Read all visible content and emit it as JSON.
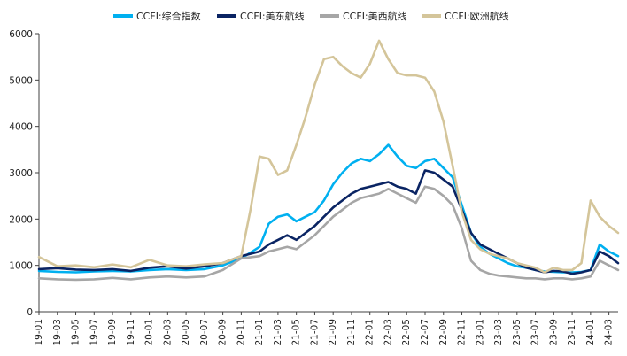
{
  "chart_data": {
    "type": "line",
    "title": "",
    "xlabel": "",
    "ylabel": "",
    "ylim": [
      0,
      6000
    ],
    "y_ticks": [
      0,
      1000,
      2000,
      3000,
      4000,
      5000,
      6000
    ],
    "x_tick_labels": [
      "19-01",
      "19-03",
      "19-05",
      "19-07",
      "19-09",
      "19-11",
      "20-01",
      "20-03",
      "20-05",
      "20-07",
      "20-09",
      "20-11",
      "21-01",
      "21-03",
      "21-05",
      "21-07",
      "21-09",
      "21-11",
      "22-01",
      "22-03",
      "22-05",
      "22-07",
      "22-09",
      "22-11",
      "23-01",
      "23-03",
      "23-05",
      "23-07",
      "23-09",
      "23-11",
      "24-01",
      "24-03"
    ],
    "x_index_range": [
      0,
      63
    ],
    "grid": false,
    "legend_position": "top",
    "series": [
      {
        "name": "CCFI:综合指数",
        "color": "#00b0f0",
        "x": [
          0,
          2,
          4,
          6,
          8,
          10,
          12,
          14,
          16,
          18,
          20,
          22,
          24,
          25,
          26,
          27,
          28,
          29,
          30,
          31,
          32,
          33,
          34,
          35,
          36,
          37,
          38,
          39,
          40,
          41,
          42,
          43,
          44,
          45,
          46,
          47,
          48,
          49,
          50,
          51,
          52,
          53,
          54,
          55,
          56,
          57,
          58,
          59,
          60,
          61,
          62,
          63
        ],
        "values": [
          880,
          860,
          850,
          870,
          880,
          870,
          900,
          920,
          900,
          920,
          1000,
          1150,
          1400,
          1900,
          2050,
          2100,
          1950,
          2050,
          2150,
          2400,
          2750,
          3000,
          3200,
          3300,
          3250,
          3400,
          3600,
          3350,
          3150,
          3100,
          3250,
          3300,
          3100,
          2900,
          2300,
          1700,
          1400,
          1250,
          1150,
          1050,
          980,
          950,
          900,
          870,
          860,
          850,
          850,
          860,
          900,
          1450,
          1300,
          1200
        ]
      },
      {
        "name": "CCFI:美东航线",
        "color": "#0a2463",
        "x": [
          0,
          2,
          4,
          6,
          8,
          10,
          12,
          14,
          16,
          18,
          20,
          22,
          24,
          25,
          26,
          27,
          28,
          29,
          30,
          31,
          32,
          33,
          34,
          35,
          36,
          37,
          38,
          39,
          40,
          41,
          42,
          43,
          44,
          45,
          46,
          47,
          48,
          49,
          50,
          51,
          52,
          53,
          54,
          55,
          56,
          57,
          58,
          59,
          60,
          61,
          62,
          63
        ],
        "values": [
          920,
          940,
          910,
          900,
          920,
          880,
          950,
          980,
          930,
          980,
          1050,
          1200,
          1300,
          1450,
          1550,
          1650,
          1550,
          1700,
          1850,
          2050,
          2250,
          2400,
          2550,
          2650,
          2700,
          2750,
          2800,
          2700,
          2650,
          2550,
          3050,
          3000,
          2850,
          2700,
          2200,
          1700,
          1450,
          1350,
          1250,
          1150,
          1050,
          950,
          900,
          850,
          880,
          870,
          820,
          850,
          900,
          1300,
          1200,
          1050
        ]
      },
      {
        "name": "CCFI:美西航线",
        "color": "#a6a6a6",
        "x": [
          0,
          2,
          4,
          6,
          8,
          10,
          12,
          14,
          16,
          18,
          20,
          22,
          24,
          25,
          26,
          27,
          28,
          29,
          30,
          31,
          32,
          33,
          34,
          35,
          36,
          37,
          38,
          39,
          40,
          41,
          42,
          43,
          44,
          45,
          46,
          47,
          48,
          49,
          50,
          51,
          52,
          53,
          54,
          55,
          56,
          57,
          58,
          59,
          60,
          61,
          62,
          63
        ],
        "values": [
          720,
          700,
          690,
          700,
          730,
          700,
          740,
          760,
          740,
          760,
          900,
          1150,
          1200,
          1300,
          1350,
          1400,
          1350,
          1500,
          1650,
          1850,
          2050,
          2200,
          2350,
          2450,
          2500,
          2550,
          2650,
          2550,
          2450,
          2350,
          2700,
          2650,
          2500,
          2300,
          1800,
          1100,
          900,
          820,
          780,
          760,
          740,
          720,
          720,
          700,
          720,
          720,
          700,
          720,
          760,
          1100,
          1000,
          900
        ]
      },
      {
        "name": "CCFI:欧洲航线",
        "color": "#d4c59a",
        "x": [
          0,
          2,
          4,
          6,
          8,
          10,
          12,
          14,
          16,
          18,
          20,
          22,
          23,
          24,
          25,
          26,
          27,
          28,
          29,
          30,
          31,
          32,
          33,
          34,
          35,
          36,
          37,
          38,
          39,
          40,
          41,
          42,
          43,
          44,
          45,
          46,
          47,
          48,
          49,
          50,
          51,
          52,
          53,
          54,
          55,
          56,
          57,
          58,
          59,
          60,
          61,
          62,
          63
        ],
        "values": [
          1180,
          980,
          1000,
          960,
          1020,
          960,
          1120,
          1000,
          980,
          1020,
          1050,
          1200,
          2200,
          3350,
          3300,
          2950,
          3050,
          3600,
          4200,
          4900,
          5450,
          5500,
          5300,
          5150,
          5050,
          5350,
          5850,
          5450,
          5150,
          5100,
          5100,
          5050,
          4750,
          4100,
          3150,
          2150,
          1550,
          1350,
          1250,
          1200,
          1150,
          1050,
          1000,
          950,
          850,
          950,
          900,
          900,
          1050,
          2400,
          2050,
          1850,
          1700
        ]
      }
    ]
  }
}
